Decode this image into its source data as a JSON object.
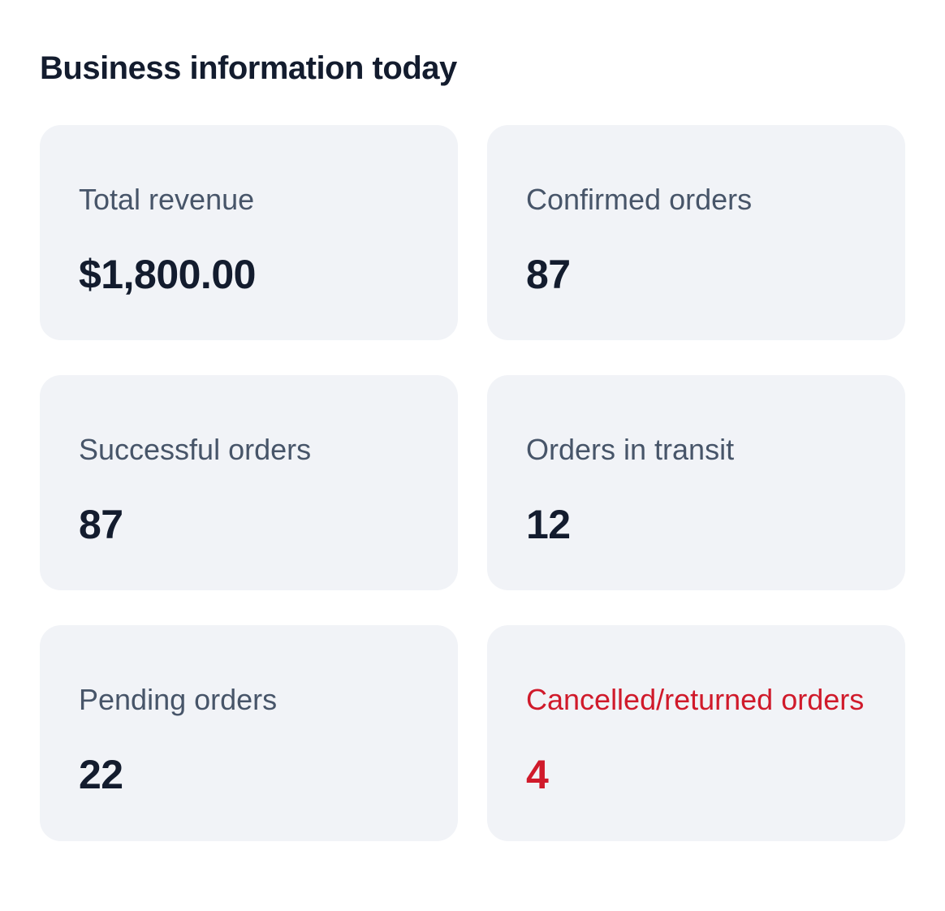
{
  "page": {
    "title": "Business information today"
  },
  "colors": {
    "page_bg": "#ffffff",
    "card_bg": "#f1f3f7",
    "title_text": "#131c2e",
    "label_text": "#475569",
    "value_text": "#131c2e",
    "danger_text": "#d01a2b"
  },
  "cards": [
    {
      "label": "Total revenue",
      "value": "$1,800.00",
      "variant": "default"
    },
    {
      "label": "Confirmed orders",
      "value": "87",
      "variant": "default"
    },
    {
      "label": "Successful orders",
      "value": "87",
      "variant": "default"
    },
    {
      "label": "Orders in transit",
      "value": "12",
      "variant": "default"
    },
    {
      "label": "Pending orders",
      "value": "22",
      "variant": "default"
    },
    {
      "label": "Cancelled/returned orders",
      "value": "4",
      "variant": "danger"
    }
  ]
}
